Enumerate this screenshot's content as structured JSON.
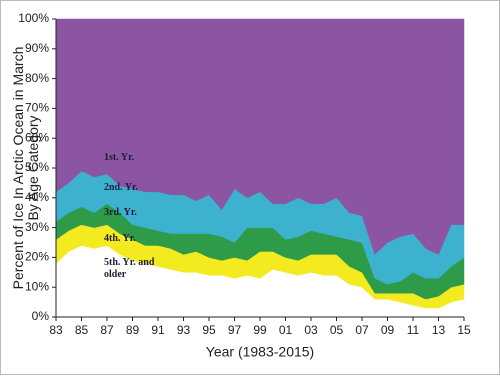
{
  "chart_data": {
    "type": "stacked-area",
    "ylabel": [
      "Percent of Ice In Arctic Ocean in March",
      "By Age Category"
    ],
    "xlabel": "Year (1983-2015)",
    "x": [
      1983,
      1984,
      1985,
      1986,
      1987,
      1988,
      1989,
      1990,
      1991,
      1992,
      1993,
      1994,
      1995,
      1996,
      1997,
      1998,
      1999,
      2000,
      2001,
      2002,
      2003,
      2004,
      2005,
      2006,
      2007,
      2008,
      2009,
      2010,
      2011,
      2012,
      2013,
      2014,
      2015
    ],
    "xlim": [
      1983,
      2015
    ],
    "xticks": [
      {
        "value": 1983,
        "label": "83"
      },
      {
        "value": 1985,
        "label": "85"
      },
      {
        "value": 1987,
        "label": "87"
      },
      {
        "value": 1989,
        "label": "89"
      },
      {
        "value": 1991,
        "label": "91"
      },
      {
        "value": 1993,
        "label": "93"
      },
      {
        "value": 1995,
        "label": "95"
      },
      {
        "value": 1997,
        "label": "97"
      },
      {
        "value": 1999,
        "label": "99"
      },
      {
        "value": 2001,
        "label": "01"
      },
      {
        "value": 2003,
        "label": "03"
      },
      {
        "value": 2005,
        "label": "05"
      },
      {
        "value": 2007,
        "label": "07"
      },
      {
        "value": 2009,
        "label": "09"
      },
      {
        "value": 2011,
        "label": "11"
      },
      {
        "value": 2013,
        "label": "13"
      },
      {
        "value": 2015,
        "label": "15"
      }
    ],
    "ylim": [
      0,
      100
    ],
    "yticks": [
      {
        "value": 0,
        "label": "0%"
      },
      {
        "value": 10,
        "label": "10%"
      },
      {
        "value": 20,
        "label": "20%"
      },
      {
        "value": 30,
        "label": "30%"
      },
      {
        "value": 40,
        "label": "40%"
      },
      {
        "value": 50,
        "label": "50%"
      },
      {
        "value": 60,
        "label": "60%"
      },
      {
        "value": 70,
        "label": "70%"
      },
      {
        "value": 80,
        "label": "80%"
      },
      {
        "value": 90,
        "label": "90%"
      },
      {
        "value": 100,
        "label": "100%"
      }
    ],
    "series": [
      {
        "name": "5th. Yr. and older",
        "color": "#ffffff",
        "values": [
          18,
          22,
          24,
          23,
          24,
          21,
          19,
          18,
          17,
          16,
          15,
          15,
          14,
          14,
          13,
          14,
          13,
          16,
          15,
          14,
          15,
          14,
          14,
          11,
          10,
          6,
          6,
          5,
          4,
          3,
          3,
          5,
          6
        ]
      },
      {
        "name": "4th. Yr.",
        "color": "#f3ea1f",
        "values": [
          8,
          7,
          7,
          7,
          7,
          7,
          7,
          6,
          7,
          7,
          6,
          7,
          6,
          5,
          7,
          5,
          9,
          6,
          5,
          5,
          6,
          7,
          7,
          6,
          5,
          2,
          2,
          3,
          4,
          3,
          4,
          5,
          5
        ]
      },
      {
        "name": "3rd. Yr.",
        "color": "#2e9b48",
        "values": [
          6,
          6,
          6,
          5,
          7,
          7,
          5,
          6,
          5,
          5,
          7,
          6,
          8,
          8,
          5,
          11,
          8,
          8,
          6,
          8,
          8,
          7,
          6,
          9,
          10,
          5,
          3,
          4,
          7,
          7,
          6,
          7,
          9
        ]
      },
      {
        "name": "2nd. Yr.",
        "color": "#3db2cf",
        "values": [
          10,
          10,
          12,
          12,
          10,
          9,
          12,
          12,
          13,
          13,
          13,
          11,
          13,
          9,
          18,
          10,
          12,
          8,
          12,
          13,
          9,
          10,
          13,
          9,
          9,
          8,
          14,
          15,
          13,
          10,
          8,
          14,
          11
        ]
      },
      {
        "name": "1st. Yr.",
        "color": "#8c55a4",
        "values": [
          58,
          55,
          51,
          53,
          52,
          56,
          57,
          58,
          58,
          59,
          59,
          61,
          59,
          64,
          57,
          60,
          58,
          62,
          62,
          60,
          62,
          62,
          60,
          65,
          66,
          79,
          75,
          73,
          72,
          77,
          79,
          69,
          69
        ]
      }
    ]
  }
}
